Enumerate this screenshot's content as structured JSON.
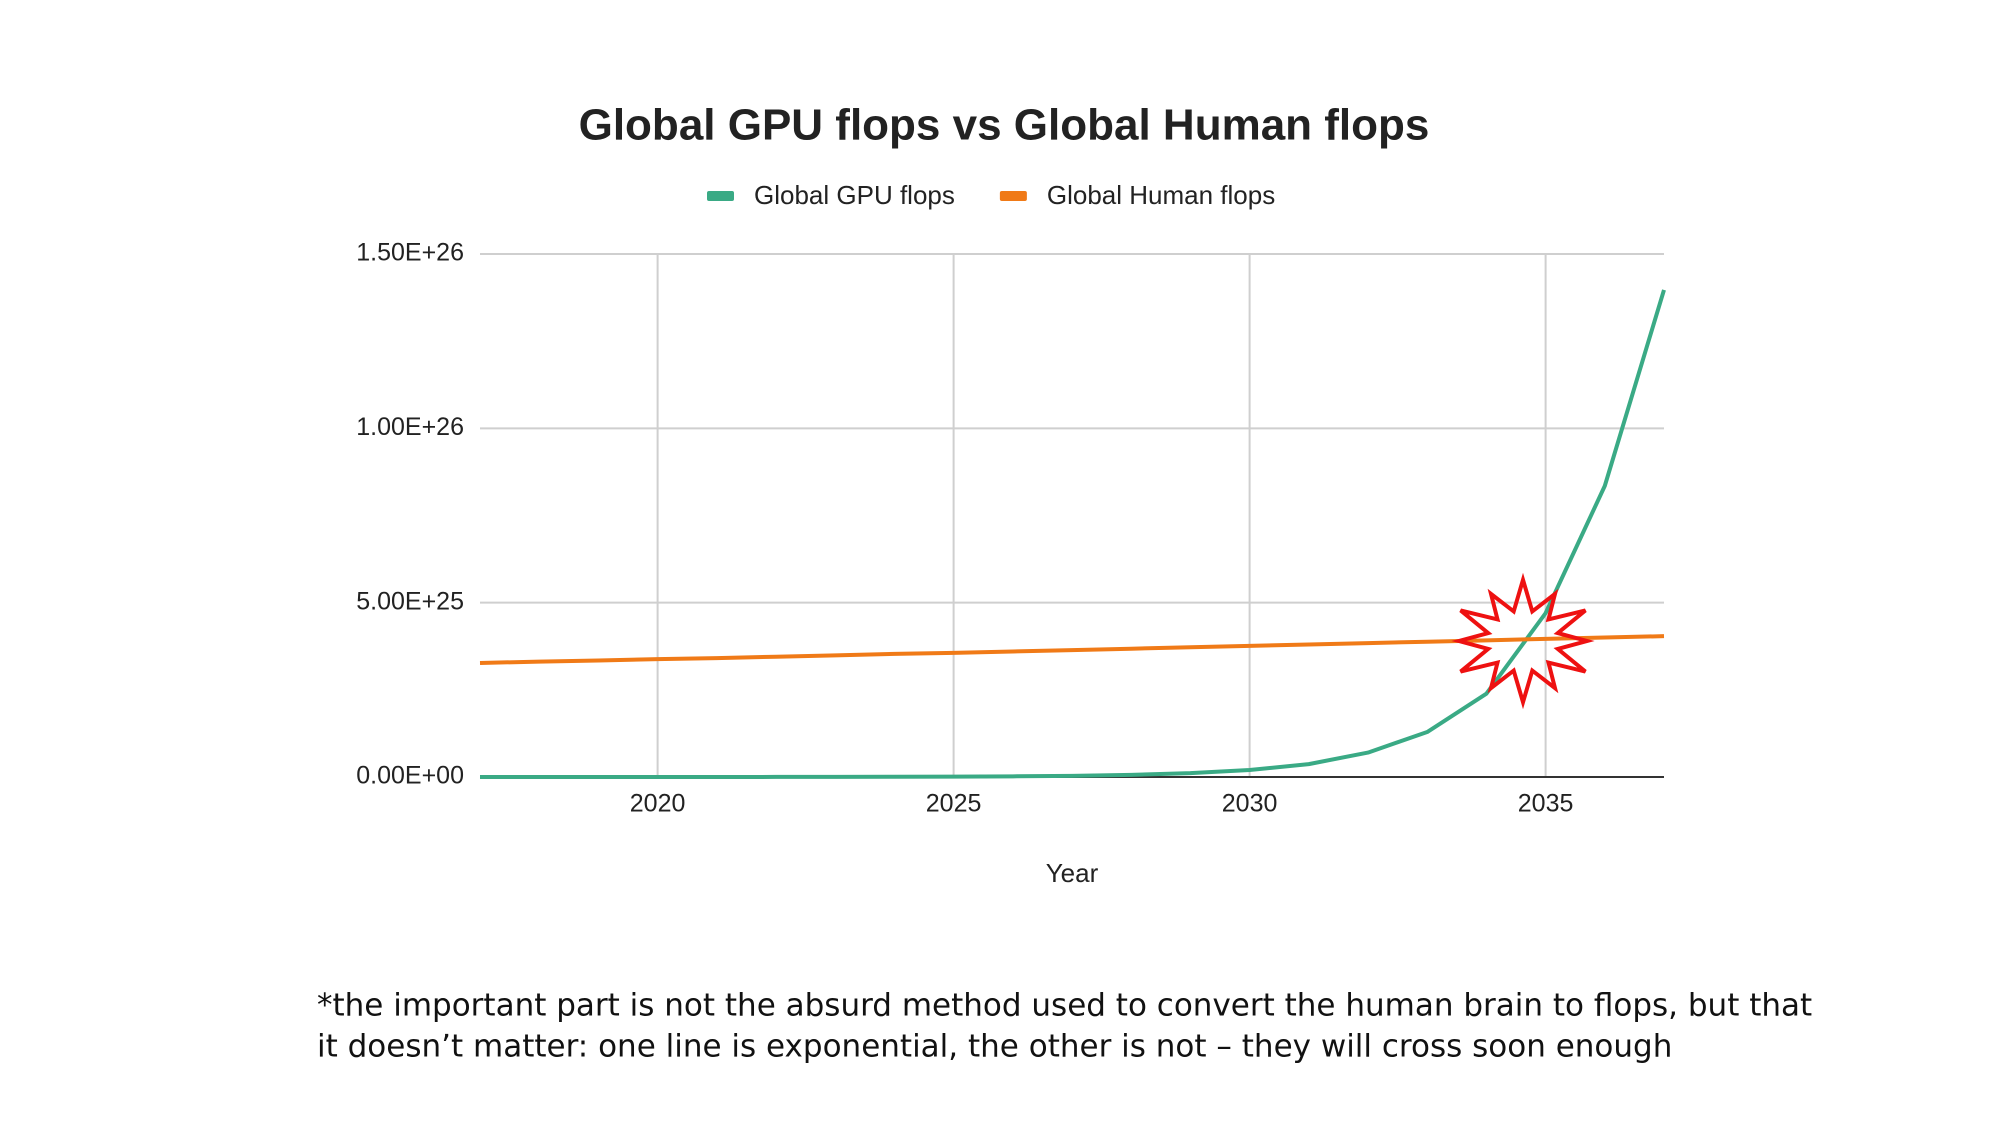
{
  "chart_data": {
    "type": "line",
    "title": "Global GPU flops vs Global Human flops",
    "x_label": "Year",
    "x": [
      2017,
      2018,
      2019,
      2020,
      2021,
      2022,
      2023,
      2024,
      2025,
      2026,
      2027,
      2028,
      2029,
      2030,
      2031,
      2032,
      2033,
      2034,
      2035,
      2036,
      2037
    ],
    "series": [
      {
        "name": "Global GPU flops",
        "color": "#3aaa85",
        "values": [
          9.5e+20,
          1.7e+21,
          3.1e+21,
          5.5e+21,
          1e+22,
          1.8e+22,
          3.2e+22,
          5.8e+22,
          1.05e+23,
          1.9e+23,
          3.4e+23,
          6e+23,
          1.1e+24,
          2e+24,
          3.7e+24,
          7e+24,
          1.29e+25,
          2.39e+25,
          4.7e+25,
          8.35e+25,
          1.397e+26
        ]
      },
      {
        "name": "Global Human flops",
        "color": "#f07a17",
        "values": [
          3.27e+25,
          3.31e+25,
          3.34e+25,
          3.38e+25,
          3.41e+25,
          3.45e+25,
          3.49e+25,
          3.53e+25,
          3.56e+25,
          3.6e+25,
          3.64e+25,
          3.68e+25,
          3.72e+25,
          3.76e+25,
          3.8e+25,
          3.84e+25,
          3.88e+25,
          3.92e+25,
          3.96e+25,
          4e+25,
          4.04e+25
        ]
      }
    ],
    "xlim": [
      2017,
      2037
    ],
    "xticks": [
      2020,
      2025,
      2030,
      2035
    ],
    "ylim": [
      0,
      1.5e+26
    ],
    "yticks": [
      {
        "value": 0,
        "label": "0.00E+00"
      },
      {
        "value": 5e+25,
        "label": "5.00E+25"
      },
      {
        "value": 1e+26,
        "label": "1.00E+26"
      },
      {
        "value": 1.5e+26,
        "label": "1.50E+26"
      }
    ],
    "grid": true,
    "legend": "top",
    "caption": [
      "*the important part is not the absurd method used to convert the human brain to flops, but that",
      "it doesn’t matter: one line is exponential, the other is not – they will cross soon enough"
    ]
  }
}
